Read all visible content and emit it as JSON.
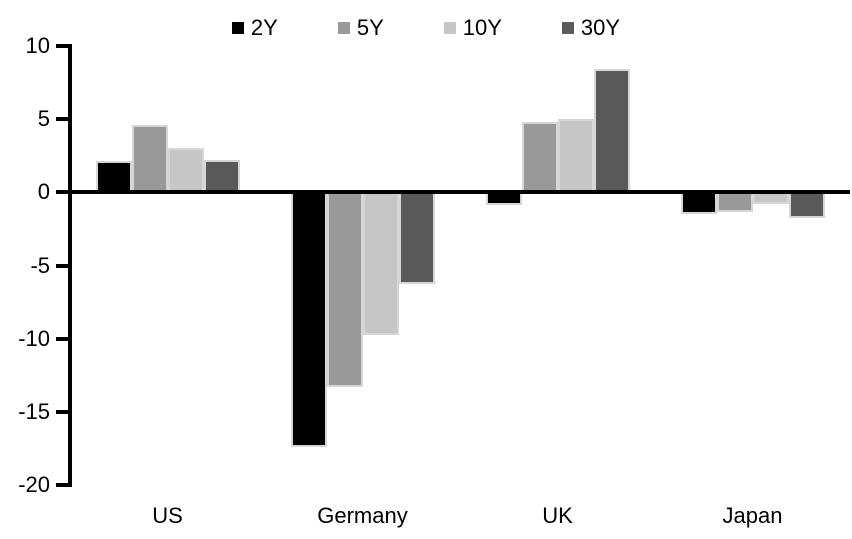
{
  "chart_data": {
    "type": "bar",
    "title": "",
    "xlabel": "",
    "ylabel": "",
    "categories": [
      "US",
      "Germany",
      "UK",
      "Japan"
    ],
    "series": [
      {
        "name": "2Y",
        "color": "#000000",
        "values": [
          2.1,
          -17.4,
          -0.9,
          -1.5
        ]
      },
      {
        "name": "5Y",
        "color": "#999999",
        "values": [
          4.6,
          -13.3,
          4.8,
          -1.4
        ]
      },
      {
        "name": "10Y",
        "color": "#c6c6c6",
        "values": [
          3.0,
          -9.8,
          5.0,
          -0.8
        ]
      },
      {
        "name": "30Y",
        "color": "#595959",
        "values": [
          2.2,
          -6.3,
          8.4,
          -1.8
        ]
      }
    ],
    "ylim": [
      -20,
      10
    ],
    "yticks": [
      10,
      5,
      0,
      -5,
      -10,
      -15,
      -20
    ],
    "legend_position": "top-center",
    "grid": false,
    "axis_color": "#000000",
    "background_color": "#ffffff"
  }
}
